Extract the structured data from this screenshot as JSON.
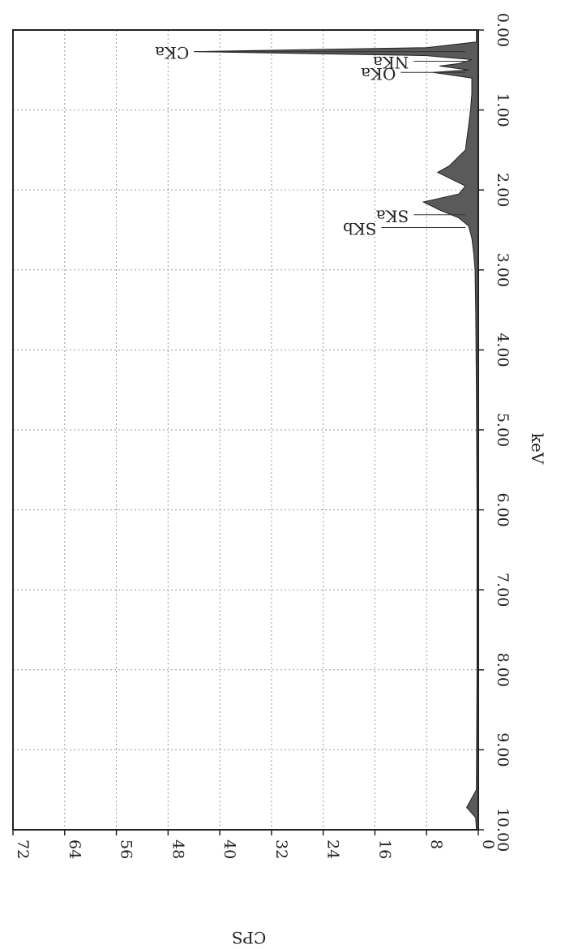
{
  "chart_data": {
    "type": "area",
    "title": "",
    "xlabel": "keV",
    "ylabel": "CPS",
    "xlim": [
      0,
      10
    ],
    "ylim": [
      0,
      72
    ],
    "x_ticks": [
      "0.00",
      "1.00",
      "2.00",
      "3.00",
      "4.00",
      "5.00",
      "6.00",
      "7.00",
      "8.00",
      "9.00",
      "10.00"
    ],
    "y_ticks": [
      "0",
      "8",
      "16",
      "24",
      "32",
      "40",
      "48",
      "56",
      "64",
      "72"
    ],
    "grid": true,
    "orientation": "rotated 90 degrees clockwise (keV axis runs top to bottom)",
    "spectrum": [
      {
        "x": 0.0,
        "y": 0.3
      },
      {
        "x": 0.15,
        "y": 0.3
      },
      {
        "x": 0.22,
        "y": 8
      },
      {
        "x": 0.27,
        "y": 44
      },
      {
        "x": 0.32,
        "y": 8
      },
      {
        "x": 0.37,
        "y": 1.0
      },
      {
        "x": 0.42,
        "y": 3
      },
      {
        "x": 0.45,
        "y": 6
      },
      {
        "x": 0.5,
        "y": 1.5
      },
      {
        "x": 0.53,
        "y": 7
      },
      {
        "x": 0.6,
        "y": 1.0
      },
      {
        "x": 0.8,
        "y": 1.0
      },
      {
        "x": 1.0,
        "y": 1.2
      },
      {
        "x": 1.2,
        "y": 1.5
      },
      {
        "x": 1.5,
        "y": 2.0
      },
      {
        "x": 1.7,
        "y": 4.5
      },
      {
        "x": 1.78,
        "y": 6.3
      },
      {
        "x": 1.85,
        "y": 4.5
      },
      {
        "x": 1.95,
        "y": 2.0
      },
      {
        "x": 2.05,
        "y": 3.0
      },
      {
        "x": 2.15,
        "y": 8.5
      },
      {
        "x": 2.25,
        "y": 6.0
      },
      {
        "x": 2.35,
        "y": 3.0
      },
      {
        "x": 2.45,
        "y": 1.5
      },
      {
        "x": 2.6,
        "y": 1.0
      },
      {
        "x": 2.8,
        "y": 0.7
      },
      {
        "x": 3.0,
        "y": 0.5
      },
      {
        "x": 3.5,
        "y": 0.4
      },
      {
        "x": 4.5,
        "y": 0.3
      },
      {
        "x": 6.0,
        "y": 0.2
      },
      {
        "x": 8.0,
        "y": 0.2
      },
      {
        "x": 9.5,
        "y": 0.3
      },
      {
        "x": 9.72,
        "y": 1.8
      },
      {
        "x": 9.85,
        "y": 0.4
      },
      {
        "x": 10.0,
        "y": 0.3
      }
    ],
    "peak_labels": [
      {
        "label": "CKa",
        "x": 0.27,
        "y": 44
      },
      {
        "label": "NKa",
        "x": 0.39,
        "y": 10
      },
      {
        "label": "OKa",
        "x": 0.53,
        "y": 12
      },
      {
        "label": "SKa",
        "x": 2.31,
        "y": 10
      },
      {
        "label": "SKb",
        "x": 2.47,
        "y": 15
      }
    ]
  }
}
